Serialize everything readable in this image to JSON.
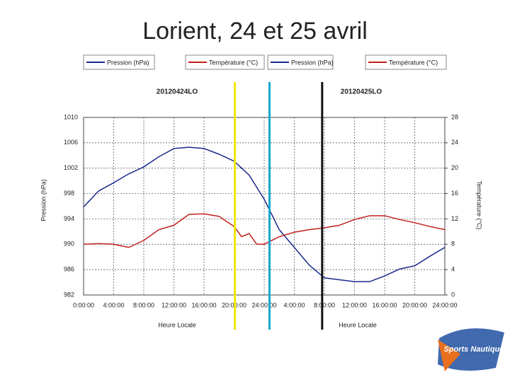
{
  "title": "Lorient, 24 et 25 avril",
  "logo_text": "Sports Nautiques",
  "chart_data": {
    "type": "line",
    "panel_titles": [
      "20120424LO",
      "20120425LO"
    ],
    "x_label": "Heure Locale",
    "y_label": "Pression (hPa)",
    "y2_label": "Température (°C)",
    "x": [
      0,
      2,
      4,
      6,
      8,
      10,
      12,
      14,
      16,
      18,
      20,
      21,
      22,
      23,
      24,
      26,
      28,
      30,
      32,
      34,
      36,
      38,
      40,
      42,
      44,
      46,
      48
    ],
    "series": [
      {
        "name": "Pression (hPa)",
        "color": "#1a2a8c",
        "axis": "y",
        "values": [
          995.9,
          998.4,
          999.7,
          1001.1,
          1002.2,
          1003.8,
          1005.1,
          1005.3,
          1005.1,
          1004.2,
          1003.1,
          1002.0,
          1000.9,
          999.0,
          997.1,
          992.3,
          989.5,
          986.7,
          984.7,
          984.4,
          984.1,
          984.1,
          985.0,
          986.1,
          986.6,
          988.1,
          989.5
        ]
      },
      {
        "name": "Température (°C)",
        "color": "#c0201a",
        "axis": "y2",
        "values": [
          8.0,
          8.1,
          8.0,
          7.5,
          8.6,
          10.3,
          11.0,
          12.7,
          12.8,
          12.4,
          10.8,
          9.2,
          9.7,
          8.0,
          8.0,
          9.2,
          9.9,
          10.3,
          10.6,
          11.0,
          11.9,
          12.5,
          12.5,
          11.9,
          11.4,
          10.8,
          10.3
        ]
      }
    ],
    "xlim": [
      0,
      48
    ],
    "xticks": [
      {
        "value": 0,
        "label": "0:00:00"
      },
      {
        "value": 4,
        "label": "4:00:00"
      },
      {
        "value": 8,
        "label": "8:00:00"
      },
      {
        "value": 12,
        "label": "12:00:00"
      },
      {
        "value": 16,
        "label": "16:00:00"
      },
      {
        "value": 20,
        "label": "20:00:00"
      },
      {
        "value": 24,
        "label": "24:00:00"
      },
      {
        "value": 28,
        "label": "4:00:00"
      },
      {
        "value": 32,
        "label": "8:00:00"
      },
      {
        "value": 36,
        "label": "12:00:00"
      },
      {
        "value": 40,
        "label": "16:00:00"
      },
      {
        "value": 44,
        "label": "20:00:00"
      },
      {
        "value": 48,
        "label": "24:00:00"
      }
    ],
    "ylim": [
      982,
      1010
    ],
    "yticks": [
      982,
      986,
      990,
      994,
      998,
      1002,
      1006,
      1010
    ],
    "y2lim": [
      0,
      28
    ],
    "y2ticks": [
      0,
      4,
      8,
      12,
      16,
      20,
      24,
      28
    ],
    "grid": true,
    "vlines": [
      {
        "x": 20.1,
        "color": "#f2e600"
      },
      {
        "x": 24.7,
        "color": "#1aa6cc"
      },
      {
        "x": 31.7,
        "color": "#111111"
      }
    ]
  }
}
